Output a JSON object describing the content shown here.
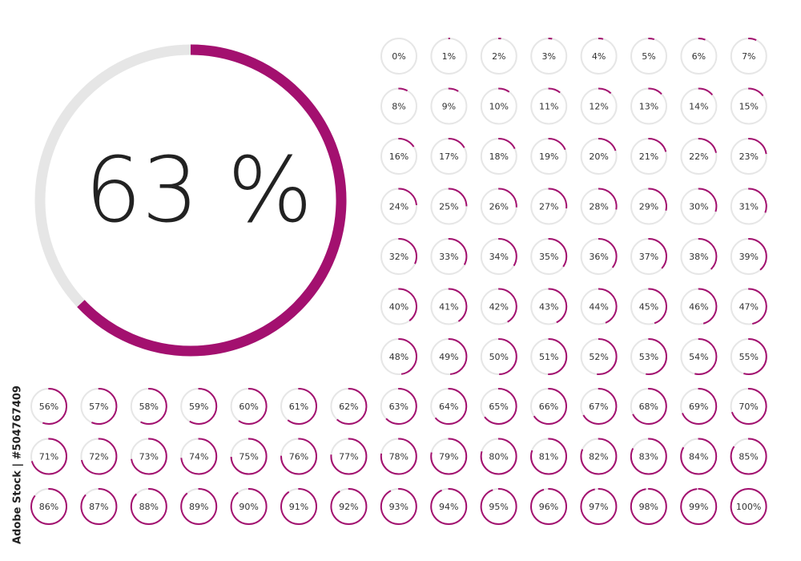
{
  "main": {
    "value": 63,
    "label": "63 %"
  },
  "rings": {
    "values": [
      0,
      1,
      2,
      3,
      4,
      5,
      6,
      7,
      8,
      9,
      10,
      11,
      12,
      13,
      14,
      15,
      16,
      17,
      18,
      19,
      20,
      21,
      22,
      23,
      24,
      25,
      26,
      27,
      28,
      29,
      30,
      31,
      32,
      33,
      34,
      35,
      36,
      37,
      38,
      39,
      40,
      41,
      42,
      43,
      44,
      45,
      46,
      47,
      48,
      49,
      50,
      51,
      52,
      53,
      54,
      55,
      56,
      57,
      58,
      59,
      60,
      61,
      62,
      63,
      64,
      65,
      66,
      67,
      68,
      69,
      70,
      71,
      72,
      73,
      74,
      75,
      76,
      77,
      78,
      79,
      80,
      81,
      82,
      83,
      84,
      85,
      86,
      87,
      88,
      89,
      90,
      91,
      92,
      93,
      94,
      95,
      96,
      97,
      98,
      99,
      100
    ],
    "labels": [
      "0%",
      "1%",
      "2%",
      "3%",
      "4%",
      "5%",
      "6%",
      "7%",
      "8%",
      "9%",
      "10%",
      "11%",
      "12%",
      "13%",
      "14%",
      "15%",
      "16%",
      "17%",
      "18%",
      "19%",
      "20%",
      "21%",
      "22%",
      "23%",
      "24%",
      "25%",
      "26%",
      "27%",
      "28%",
      "29%",
      "30%",
      "31%",
      "32%",
      "33%",
      "34%",
      "35%",
      "36%",
      "37%",
      "38%",
      "39%",
      "40%",
      "41%",
      "42%",
      "43%",
      "44%",
      "45%",
      "46%",
      "47%",
      "48%",
      "49%",
      "50%",
      "51%",
      "52%",
      "53%",
      "54%",
      "55%",
      "56%",
      "57%",
      "58%",
      "59%",
      "60%",
      "61%",
      "62%",
      "63%",
      "64%",
      "65%",
      "66%",
      "67%",
      "68%",
      "69%",
      "70%",
      "71%",
      "72%",
      "73%",
      "74%",
      "75%",
      "76%",
      "77%",
      "78%",
      "79%",
      "80%",
      "81%",
      "82%",
      "83%",
      "84%",
      "85%",
      "86%",
      "87%",
      "88%",
      "89%",
      "90%",
      "91%",
      "92%",
      "93%",
      "94%",
      "95%",
      "96%",
      "97%",
      "98%",
      "99%",
      "100%"
    ]
  },
  "color": "#a3106f",
  "track_color": "#e6e6e6",
  "watermark": "Adobe Stock | #504767409"
}
